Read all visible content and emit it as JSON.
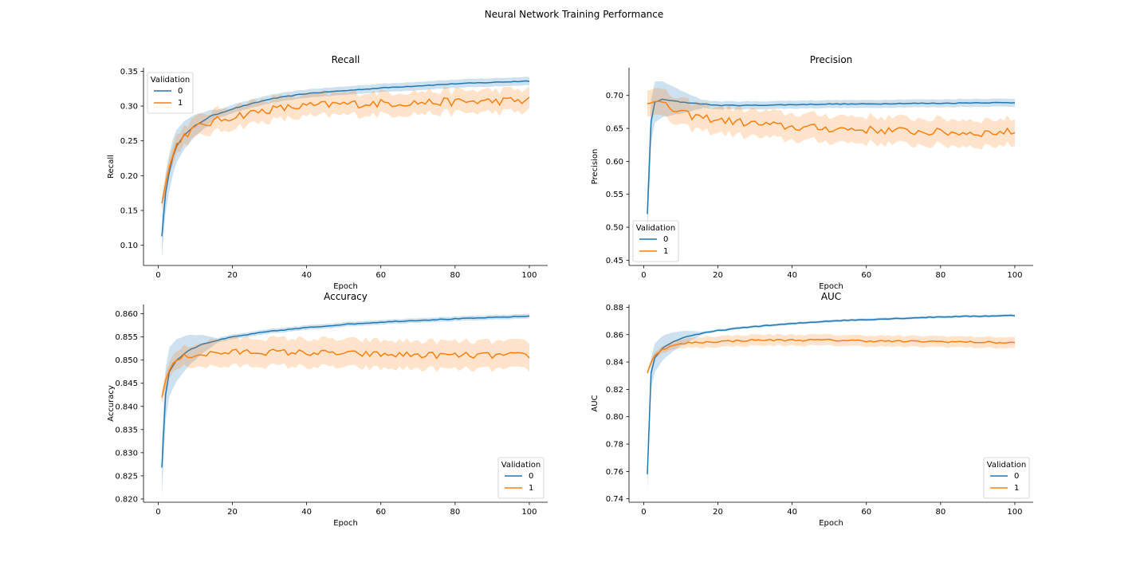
{
  "figure": {
    "title": "Neural Network Training Performance"
  },
  "colors": {
    "series_0": "#1f77b4",
    "series_1": "#ff7f0e"
  },
  "chart_data": [
    {
      "type": "line",
      "title": "Recall",
      "xlabel": "Epoch",
      "ylabel": "Recall",
      "xlim": [
        -3.95,
        104.95
      ],
      "ylim": [
        0.071,
        0.355
      ],
      "xticks": [
        0,
        20,
        40,
        60,
        80,
        100
      ],
      "xtick_labels": [
        "0",
        "20",
        "40",
        "60",
        "80",
        "100"
      ],
      "yticks": [
        0.1,
        0.15,
        0.2,
        0.25,
        0.3,
        0.35
      ],
      "ytick_labels": [
        "0.10",
        "0.15",
        "0.20",
        "0.25",
        "0.30",
        "0.35"
      ],
      "legend": {
        "title": "Validation",
        "placement": "upper left",
        "entries": [
          "0",
          "1"
        ]
      },
      "grid": false,
      "band": "confidence interval (shaded)",
      "series": [
        {
          "name": "0",
          "keypoints": [
            [
              1,
              0.113
            ],
            [
              2,
              0.175
            ],
            [
              3,
              0.205
            ],
            [
              4,
              0.228
            ],
            [
              5,
              0.243
            ],
            [
              7,
              0.258
            ],
            [
              10,
              0.272
            ],
            [
              14,
              0.285
            ],
            [
              20,
              0.296
            ],
            [
              25,
              0.303
            ],
            [
              30,
              0.31
            ],
            [
              40,
              0.318
            ],
            [
              50,
              0.322
            ],
            [
              60,
              0.326
            ],
            [
              70,
              0.329
            ],
            [
              80,
              0.332
            ],
            [
              90,
              0.334
            ],
            [
              100,
              0.336
            ]
          ],
          "band_start": 0.03,
          "band_end": 0.006
        },
        {
          "name": "1",
          "keypoints": [
            [
              1,
              0.161
            ],
            [
              2,
              0.188
            ],
            [
              3,
              0.212
            ],
            [
              4,
              0.23
            ],
            [
              5,
              0.245
            ],
            [
              7,
              0.258
            ],
            [
              10,
              0.268
            ],
            [
              14,
              0.276
            ],
            [
              20,
              0.285
            ],
            [
              30,
              0.295
            ],
            [
              40,
              0.3
            ],
            [
              50,
              0.303
            ],
            [
              60,
              0.304
            ],
            [
              70,
              0.305
            ],
            [
              80,
              0.306
            ],
            [
              90,
              0.307
            ],
            [
              100,
              0.308
            ]
          ],
          "band_start": 0.012,
          "band_end": 0.016,
          "noise": 0.006
        }
      ]
    },
    {
      "type": "line",
      "title": "Precision",
      "xlabel": "Epoch",
      "ylabel": "Precision",
      "xlim": [
        -3.95,
        104.95
      ],
      "ylim": [
        0.442,
        0.742
      ],
      "xticks": [
        0,
        20,
        40,
        60,
        80,
        100
      ],
      "xtick_labels": [
        "0",
        "20",
        "40",
        "60",
        "80",
        "100"
      ],
      "yticks": [
        0.45,
        0.5,
        0.55,
        0.6,
        0.65,
        0.7
      ],
      "ytick_labels": [
        "0.45",
        "0.50",
        "0.55",
        "0.60",
        "0.65",
        "0.70"
      ],
      "legend": {
        "title": "Validation",
        "placement": "lower left",
        "entries": [
          "0",
          "1"
        ]
      },
      "grid": false,
      "band": "confidence interval (shaded)",
      "series": [
        {
          "name": "0",
          "keypoints": [
            [
              1,
              0.52
            ],
            [
              2,
              0.66
            ],
            [
              3,
              0.69
            ],
            [
              5,
              0.694
            ],
            [
              10,
              0.69
            ],
            [
              20,
              0.685
            ],
            [
              30,
              0.685
            ],
            [
              40,
              0.686
            ],
            [
              50,
              0.687
            ],
            [
              60,
              0.687
            ],
            [
              70,
              0.688
            ],
            [
              80,
              0.688
            ],
            [
              90,
              0.689
            ],
            [
              100,
              0.689
            ]
          ],
          "band_start": 0.035,
          "band_end": 0.006
        },
        {
          "name": "1",
          "keypoints": [
            [
              1,
              0.688
            ],
            [
              3,
              0.692
            ],
            [
              5,
              0.688
            ],
            [
              8,
              0.678
            ],
            [
              12,
              0.67
            ],
            [
              20,
              0.663
            ],
            [
              30,
              0.657
            ],
            [
              40,
              0.652
            ],
            [
              50,
              0.65
            ],
            [
              60,
              0.648
            ],
            [
              70,
              0.646
            ],
            [
              80,
              0.644
            ],
            [
              90,
              0.643
            ],
            [
              100,
              0.645
            ]
          ],
          "band_start": 0.02,
          "band_end": 0.02,
          "noise": 0.006
        }
      ]
    },
    {
      "type": "line",
      "title": "Accuracy",
      "xlabel": "Epoch",
      "ylabel": "Accuracy",
      "xlim": [
        -3.95,
        104.95
      ],
      "ylim": [
        0.8193,
        0.862
      ],
      "xticks": [
        0,
        20,
        40,
        60,
        80,
        100
      ],
      "xtick_labels": [
        "0",
        "20",
        "40",
        "60",
        "80",
        "100"
      ],
      "yticks": [
        0.82,
        0.825,
        0.83,
        0.835,
        0.84,
        0.845,
        0.85,
        0.855,
        0.86
      ],
      "ytick_labels": [
        "0.820",
        "0.825",
        "0.830",
        "0.835",
        "0.840",
        "0.845",
        "0.850",
        "0.855",
        "0.860"
      ],
      "legend": {
        "title": "Validation",
        "placement": "lower right",
        "entries": [
          "0",
          "1"
        ]
      },
      "grid": false,
      "band": "confidence interval (shaded)",
      "series": [
        {
          "name": "0",
          "keypoints": [
            [
              1,
              0.8268
            ],
            [
              2,
              0.8425
            ],
            [
              3,
              0.8475
            ],
            [
              5,
              0.85
            ],
            [
              8,
              0.852
            ],
            [
              12,
              0.8535
            ],
            [
              20,
              0.855
            ],
            [
              30,
              0.8562
            ],
            [
              40,
              0.857
            ],
            [
              50,
              0.8577
            ],
            [
              60,
              0.8582
            ],
            [
              70,
              0.8586
            ],
            [
              80,
              0.8589
            ],
            [
              90,
              0.8592
            ],
            [
              100,
              0.8595
            ]
          ],
          "band_start": 0.006,
          "band_end": 0.0005
        },
        {
          "name": "1",
          "keypoints": [
            [
              1,
              0.842
            ],
            [
              2,
              0.8455
            ],
            [
              3,
              0.848
            ],
            [
              5,
              0.85
            ],
            [
              8,
              0.851
            ],
            [
              15,
              0.8515
            ],
            [
              25,
              0.8518
            ],
            [
              40,
              0.8516
            ],
            [
              60,
              0.8512
            ],
            [
              80,
              0.851
            ],
            [
              100,
              0.851
            ]
          ],
          "band_start": 0.0015,
          "band_end": 0.003,
          "noise": 0.0007
        }
      ]
    },
    {
      "type": "line",
      "title": "AUC",
      "xlabel": "Epoch",
      "ylabel": "AUC",
      "xlim": [
        -3.95,
        104.95
      ],
      "ylim": [
        0.7375,
        0.882
      ],
      "xticks": [
        0,
        20,
        40,
        60,
        80,
        100
      ],
      "xtick_labels": [
        "0",
        "20",
        "40",
        "60",
        "80",
        "100"
      ],
      "yticks": [
        0.74,
        0.76,
        0.78,
        0.8,
        0.82,
        0.84,
        0.86,
        0.88
      ],
      "ytick_labels": [
        "0.74",
        "0.76",
        "0.78",
        "0.80",
        "0.82",
        "0.84",
        "0.86",
        "0.88"
      ],
      "legend": {
        "title": "Validation",
        "placement": "lower right",
        "entries": [
          "0",
          "1"
        ]
      },
      "grid": false,
      "band": "confidence interval (shaded)",
      "series": [
        {
          "name": "0",
          "keypoints": [
            [
              1,
              0.758
            ],
            [
              2,
              0.832
            ],
            [
              3,
              0.843
            ],
            [
              5,
              0.85
            ],
            [
              8,
              0.855
            ],
            [
              12,
              0.859
            ],
            [
              20,
              0.863
            ],
            [
              30,
              0.866
            ],
            [
              40,
              0.868
            ],
            [
              50,
              0.87
            ],
            [
              60,
              0.871
            ],
            [
              70,
              0.872
            ],
            [
              80,
              0.873
            ],
            [
              90,
              0.8735
            ],
            [
              100,
              0.874
            ]
          ],
          "band_start": 0.012,
          "band_end": 0.001
        },
        {
          "name": "1",
          "keypoints": [
            [
              1,
              0.832
            ],
            [
              2,
              0.84
            ],
            [
              3,
              0.845
            ],
            [
              5,
              0.849
            ],
            [
              8,
              0.852
            ],
            [
              12,
              0.854
            ],
            [
              20,
              0.855
            ],
            [
              30,
              0.856
            ],
            [
              40,
              0.856
            ],
            [
              50,
              0.856
            ],
            [
              60,
              0.8555
            ],
            [
              70,
              0.855
            ],
            [
              80,
              0.855
            ],
            [
              90,
              0.8545
            ],
            [
              100,
              0.854
            ]
          ],
          "band_start": 0.002,
          "band_end": 0.004,
          "noise": 0.0007
        }
      ]
    }
  ]
}
